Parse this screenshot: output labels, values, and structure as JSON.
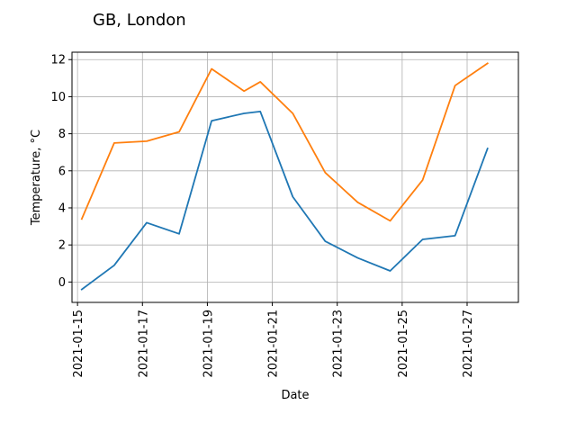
{
  "chart_data": {
    "type": "line",
    "title": "GB, London",
    "xlabel": "Date",
    "ylabel": "Temperature, °C",
    "x_tick_labels": [
      "2021-01-15",
      "2021-01-17",
      "2021-01-19",
      "2021-01-21",
      "2021-01-23",
      "2021-01-25",
      "2021-01-27"
    ],
    "y_tick_labels": [
      "0",
      "2",
      "4",
      "6",
      "8",
      "10",
      "12"
    ],
    "xlim": [
      "2021-01-14.83",
      "2021-01-28.58"
    ],
    "ylim": [
      -1.1,
      12.4
    ],
    "grid": true,
    "x": [
      "2021-01-15.13",
      "2021-01-16.13",
      "2021-01-17.13",
      "2021-01-18.13",
      "2021-01-19.13",
      "2021-01-20.13",
      "2021-01-20.63",
      "2021-01-21.63",
      "2021-01-22.63",
      "2021-01-23.63",
      "2021-01-24.63",
      "2021-01-25.63",
      "2021-01-26.63",
      "2021-01-27.63"
    ],
    "series": [
      {
        "color": "#1f77b4",
        "values": [
          -0.4,
          0.9,
          3.2,
          2.6,
          8.7,
          9.1,
          9.2,
          4.6,
          2.2,
          1.3,
          0.6,
          2.3,
          2.5,
          7.2
        ]
      },
      {
        "color": "#ff7f0e",
        "values": [
          3.4,
          7.5,
          7.6,
          8.1,
          11.5,
          10.3,
          10.8,
          9.1,
          5.9,
          4.3,
          3.3,
          5.5,
          10.6,
          11.8
        ]
      }
    ]
  }
}
